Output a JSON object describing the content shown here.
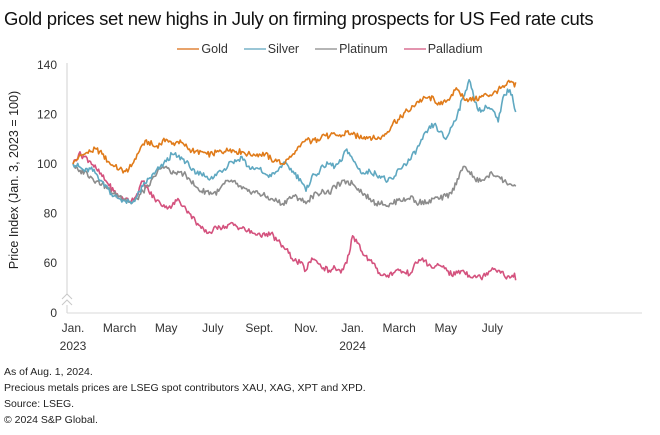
{
  "chart_data": {
    "type": "line",
    "title": "Gold prices set new highs in July on firming prospects for US Fed rate cuts",
    "xlabel": "",
    "ylabel": "Price Index (Jan. 3, 2023 = 100)",
    "ylim": [
      0,
      140
    ],
    "y_axis_break": [
      0,
      50
    ],
    "y_ticks": [
      0,
      60,
      80,
      100,
      120,
      140
    ],
    "x_range_months": [
      0,
      19
    ],
    "x_ticks": [
      {
        "month": 0,
        "label": "Jan.",
        "sublabel": "2023"
      },
      {
        "month": 2,
        "label": "March",
        "sublabel": ""
      },
      {
        "month": 4,
        "label": "May",
        "sublabel": ""
      },
      {
        "month": 6,
        "label": "July",
        "sublabel": ""
      },
      {
        "month": 8,
        "label": "Sept.",
        "sublabel": ""
      },
      {
        "month": 10,
        "label": "Nov.",
        "sublabel": ""
      },
      {
        "month": 12,
        "label": "Jan.",
        "sublabel": "2024"
      },
      {
        "month": 14,
        "label": "March",
        "sublabel": ""
      },
      {
        "month": 16,
        "label": "May",
        "sublabel": ""
      },
      {
        "month": 18,
        "label": "July",
        "sublabel": ""
      }
    ],
    "grid": false,
    "legend_position": "top-center",
    "x": [
      0,
      0.25,
      0.5,
      0.75,
      1,
      1.25,
      1.5,
      1.75,
      2,
      2.25,
      2.5,
      2.75,
      3,
      3.25,
      3.5,
      3.75,
      4,
      4.25,
      4.5,
      4.75,
      5,
      5.25,
      5.5,
      5.75,
      6,
      6.25,
      6.5,
      6.75,
      7,
      7.25,
      7.5,
      7.75,
      8,
      8.25,
      8.5,
      8.75,
      9,
      9.25,
      9.5,
      9.75,
      10,
      10.25,
      10.5,
      10.75,
      11,
      11.25,
      11.5,
      11.75,
      12,
      12.25,
      12.5,
      12.75,
      13,
      13.25,
      13.5,
      13.75,
      14,
      14.25,
      14.5,
      14.75,
      15,
      15.25,
      15.5,
      15.75,
      16,
      16.25,
      16.5,
      16.75,
      17,
      17.25,
      17.5,
      17.75,
      18,
      18.25,
      18.5,
      18.75,
      19
    ],
    "series": [
      {
        "name": "Gold",
        "color": "#E07B1A",
        "values": [
          100,
          103,
          104,
          105,
          106,
          104,
          101,
          99,
          98,
          97,
          99,
          104,
          108,
          109,
          107,
          108,
          110,
          108,
          109,
          108,
          106,
          105,
          105,
          104,
          104,
          105,
          105,
          106,
          105,
          105,
          104,
          104,
          104,
          104,
          102,
          101,
          100,
          102,
          104,
          107,
          110,
          109,
          110,
          112,
          111,
          112,
          111,
          113,
          112,
          111,
          111,
          111,
          110,
          111,
          113,
          117,
          118,
          121,
          122,
          125,
          126,
          127,
          126,
          124,
          125,
          128,
          130,
          127,
          126,
          126,
          127,
          128,
          128,
          130,
          131,
          133,
          132,
          130,
          133
        ]
      },
      {
        "name": "Silver",
        "color": "#5FA8C1",
        "values": [
          100,
          99,
          97,
          98,
          96,
          93,
          90,
          87,
          86,
          85,
          84,
          87,
          91,
          94,
          96,
          99,
          101,
          104,
          103,
          102,
          99,
          96,
          96,
          95,
          94,
          97,
          98,
          101,
          101,
          103,
          99,
          98,
          98,
          96,
          95,
          97,
          100,
          99,
          96,
          94,
          89,
          95,
          96,
          99,
          100,
          99,
          101,
          106,
          102,
          98,
          96,
          97,
          96,
          95,
          93,
          94,
          98,
          100,
          102,
          106,
          110,
          114,
          116,
          113,
          110,
          115,
          120,
          127,
          134,
          125,
          121,
          123,
          122,
          117,
          128,
          130,
          122,
          118,
          121
        ]
      },
      {
        "name": "Platinum",
        "color": "#8C8C8C",
        "values": [
          100,
          97,
          97,
          95,
          93,
          92,
          90,
          88,
          87,
          86,
          84,
          86,
          89,
          91,
          95,
          98,
          99,
          96,
          97,
          96,
          94,
          91,
          89,
          89,
          88,
          89,
          92,
          93,
          92,
          90,
          89,
          89,
          88,
          87,
          86,
          85,
          84,
          86,
          87,
          86,
          84,
          87,
          88,
          89,
          88,
          91,
          92,
          93,
          92,
          90,
          88,
          86,
          84,
          85,
          83,
          84,
          86,
          85,
          87,
          84,
          85,
          84,
          86,
          86,
          87,
          88,
          94,
          99,
          97,
          94,
          93,
          95,
          96,
          95,
          93,
          92,
          90,
          88,
          91
        ]
      },
      {
        "name": "Palladium",
        "color": "#D4527E",
        "values": [
          100,
          104,
          103,
          101,
          98,
          95,
          92,
          89,
          87,
          86,
          85,
          88,
          93,
          89,
          86,
          84,
          83,
          83,
          86,
          83,
          80,
          77,
          74,
          72,
          73,
          75,
          74,
          76,
          75,
          74,
          73,
          72,
          72,
          71,
          72,
          69,
          67,
          64,
          61,
          60,
          57,
          62,
          60,
          58,
          57,
          58,
          56,
          60,
          71,
          68,
          63,
          61,
          58,
          55,
          55,
          56,
          57,
          56,
          56,
          60,
          62,
          59,
          58,
          59,
          58,
          55,
          56,
          57,
          55,
          55,
          54,
          56,
          58,
          57,
          55,
          54,
          55,
          53,
          53
        ]
      }
    ]
  },
  "footer": {
    "line1": "As of Aug. 1, 2024.",
    "line2": "Precious metals prices are LSEG spot contributors XAU, XAG, XPT and XPD.",
    "line3": "Source: LSEG.",
    "line4": "© 2024 S&P Global."
  }
}
